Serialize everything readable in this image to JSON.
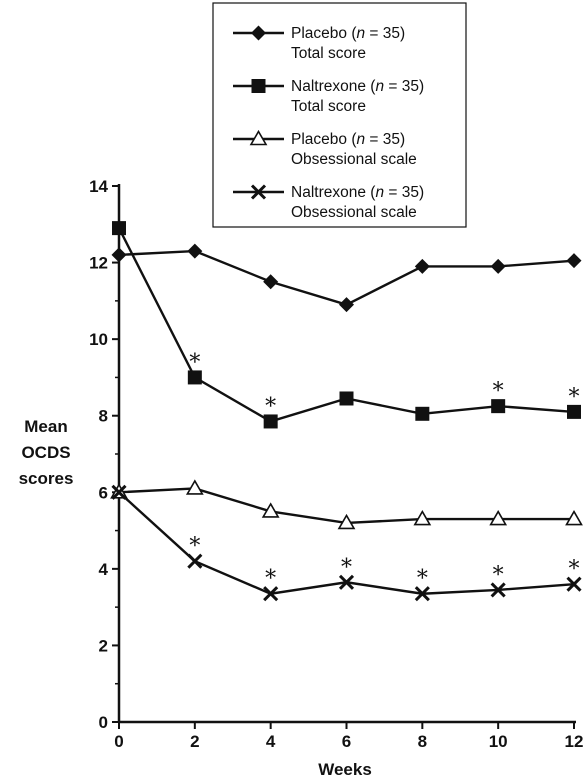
{
  "chart_data": {
    "type": "line",
    "xlabel": "Weeks",
    "ylabel_lines": [
      "Mean",
      "OCDS",
      "scores"
    ],
    "xlim": [
      0,
      12
    ],
    "ylim": [
      0,
      14
    ],
    "x": [
      0,
      2,
      4,
      6,
      8,
      10,
      12
    ],
    "xticks": [
      "0",
      "2",
      "4",
      "6",
      "8",
      "10",
      "12"
    ],
    "yticks": [
      "0",
      "2",
      "4",
      "6",
      "8",
      "10",
      "12",
      "14"
    ],
    "legend_position": "top",
    "series": [
      {
        "name_prefix": "Placebo (",
        "name_italic": "n",
        "name_suffix": " = 35)",
        "name_line2": "Total score",
        "marker": "diamond",
        "values": [
          12.2,
          12.3,
          11.5,
          10.9,
          11.9,
          11.9,
          12.05
        ],
        "significant": [
          false,
          false,
          false,
          false,
          false,
          false,
          false
        ]
      },
      {
        "name_prefix": "Naltrexone (",
        "name_italic": "n",
        "name_suffix": " = 35)",
        "name_line2": "Total score",
        "marker": "square",
        "values": [
          12.9,
          9.0,
          7.85,
          8.45,
          8.05,
          8.25,
          8.1
        ],
        "significant": [
          false,
          true,
          true,
          false,
          false,
          true,
          true
        ]
      },
      {
        "name_prefix": "Placebo (",
        "name_italic": "n",
        "name_suffix": " = 35)",
        "name_line2": "Obsessional scale",
        "marker": "triangle-open",
        "values": [
          6.0,
          6.1,
          5.5,
          5.2,
          5.3,
          5.3,
          5.3
        ],
        "significant": [
          false,
          false,
          false,
          false,
          false,
          false,
          false
        ]
      },
      {
        "name_prefix": "Naltrexone (",
        "name_italic": "n",
        "name_suffix": " = 35)",
        "name_line2": "Obsessional scale",
        "marker": "x",
        "values": [
          6.0,
          4.2,
          3.35,
          3.65,
          3.35,
          3.45,
          3.6
        ],
        "significant": [
          false,
          true,
          true,
          true,
          true,
          true,
          true
        ]
      }
    ],
    "significance_marker": "*",
    "colors": {
      "ink": "#111111",
      "background": "#ffffff"
    }
  }
}
